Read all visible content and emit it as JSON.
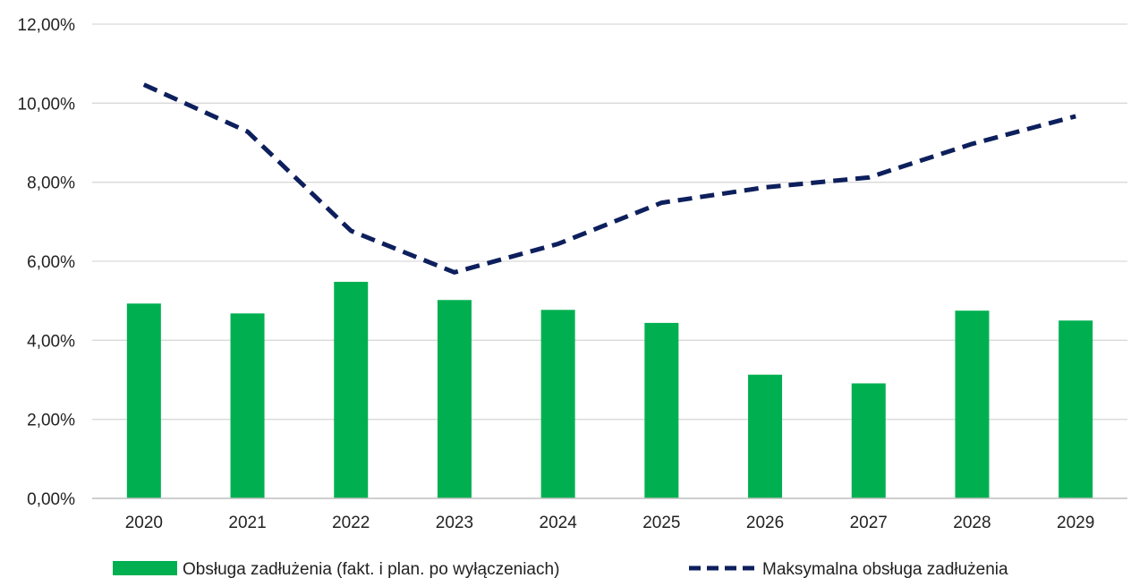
{
  "chart_data": {
    "type": "bar",
    "title": "",
    "xlabel": "",
    "ylabel": "",
    "categories": [
      "2020",
      "2021",
      "2022",
      "2023",
      "2024",
      "2025",
      "2026",
      "2027",
      "2028",
      "2029"
    ],
    "ylim": [
      0,
      12
    ],
    "yticks": [
      0,
      2,
      4,
      6,
      8,
      10,
      12
    ],
    "ytick_labels": [
      "0,00%",
      "2,00%",
      "4,00%",
      "6,00%",
      "8,00%",
      "10,00%",
      "12,00%"
    ],
    "grid": true,
    "legend_position": "bottom",
    "series": [
      {
        "name": "Obsługa zadłużenia (fakt. i plan. po wyłączeniach)",
        "type": "bar",
        "color": "#00b050",
        "values": [
          4.93,
          4.68,
          5.48,
          5.02,
          4.77,
          4.44,
          3.13,
          2.91,
          4.75,
          4.5
        ]
      },
      {
        "name": "Maksymalna obsługa zadłużenia",
        "type": "line",
        "style": "dashed",
        "color": "#0d1f5c",
        "values": [
          10.47,
          9.28,
          6.77,
          5.72,
          6.44,
          7.48,
          7.87,
          8.12,
          8.97,
          9.67
        ]
      }
    ]
  }
}
